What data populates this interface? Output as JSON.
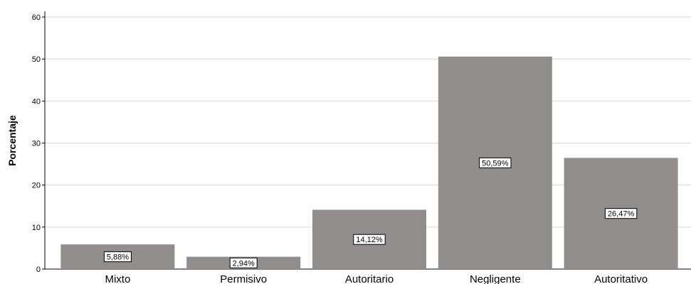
{
  "chart_data": {
    "type": "bar",
    "categories": [
      "Mixto",
      "Permisivo",
      "Autoritario",
      "Negligente",
      "Autoritativo"
    ],
    "values": [
      5.88,
      2.94,
      14.12,
      50.59,
      26.47
    ],
    "data_labels": [
      "5,88%",
      "2,94%",
      "14,12%",
      "50,59%",
      "26,47%"
    ],
    "title": "",
    "xlabel": "",
    "ylabel": "Porcentaje",
    "ylim": [
      0,
      60
    ],
    "yticks": [
      "0",
      "10",
      "20",
      "30",
      "40",
      "50",
      "60"
    ],
    "grid": true,
    "bar_color": "#918d8c"
  }
}
